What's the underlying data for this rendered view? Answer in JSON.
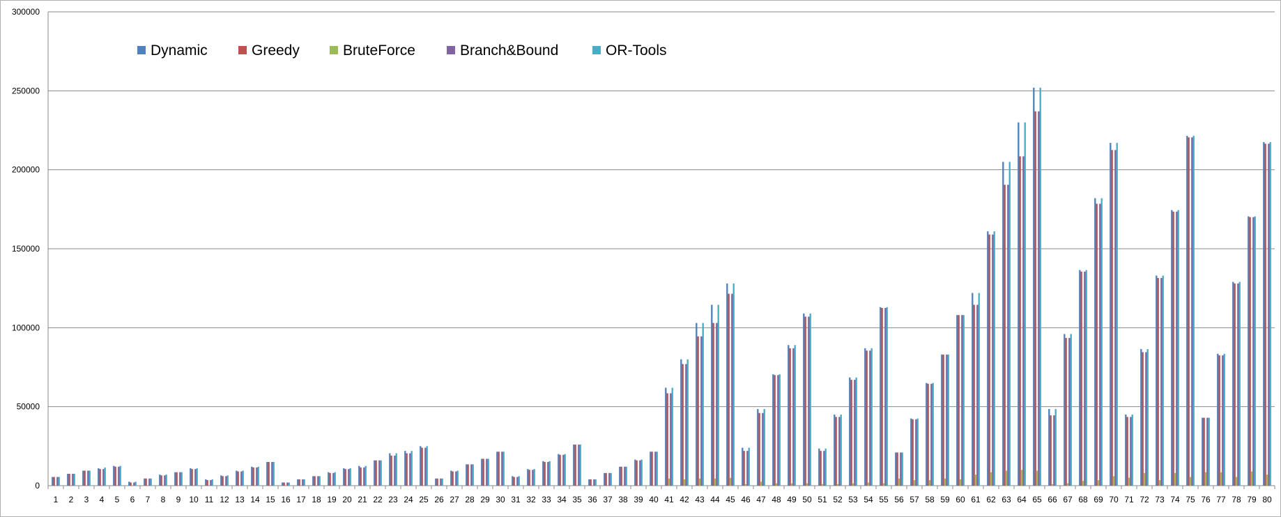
{
  "chart_data": {
    "type": "bar",
    "title": "",
    "xlabel": "",
    "ylabel": "",
    "ylim": [
      0,
      300000
    ],
    "y_ticks": [
      0,
      50000,
      100000,
      150000,
      200000,
      250000,
      300000
    ],
    "y_tick_labels": [
      "0",
      "50000",
      "100000",
      "150000",
      "200000",
      "250000",
      "300000"
    ],
    "grid": true,
    "legend_position": "top-left",
    "categories": [
      "1",
      "2",
      "3",
      "4",
      "5",
      "6",
      "7",
      "8",
      "9",
      "10",
      "11",
      "12",
      "13",
      "14",
      "15",
      "16",
      "17",
      "18",
      "19",
      "20",
      "21",
      "22",
      "23",
      "24",
      "25",
      "26",
      "27",
      "28",
      "29",
      "30",
      "31",
      "32",
      "33",
      "34",
      "35",
      "36",
      "37",
      "38",
      "39",
      "40",
      "41",
      "42",
      "43",
      "44",
      "45",
      "46",
      "47",
      "48",
      "49",
      "50",
      "51",
      "52",
      "53",
      "54",
      "55",
      "56",
      "57",
      "58",
      "59",
      "60",
      "61",
      "62",
      "63",
      "64",
      "65",
      "66",
      "67",
      "68",
      "69",
      "70",
      "71",
      "72",
      "73",
      "74",
      "75",
      "76",
      "77",
      "78",
      "79",
      "80"
    ],
    "series": [
      {
        "name": "Dynamic",
        "color": "#4F81BD",
        "values": [
          5500,
          7500,
          9500,
          11000,
          12500,
          2500,
          4500,
          7000,
          8500,
          11000,
          4000,
          6500,
          9500,
          12000,
          15000,
          2000,
          4000,
          6000,
          8500,
          11000,
          12500,
          16000,
          20500,
          22000,
          25000,
          4500,
          9500,
          13500,
          17000,
          21500,
          6000,
          10500,
          15500,
          20000,
          26000,
          4000,
          8000,
          12000,
          16500,
          21500,
          62000,
          80000,
          103000,
          114500,
          128000,
          24000,
          48500,
          70500,
          89000,
          109000,
          23500,
          45000,
          68500,
          87000,
          113000,
          21000,
          42500,
          65000,
          83000,
          108000,
          122000,
          161000,
          205000,
          230000,
          252000,
          48500,
          96000,
          136500,
          182000,
          217000,
          45000,
          86500,
          133000,
          174500,
          221500,
          43000,
          83500,
          129000,
          170500,
          217500
        ]
      },
      {
        "name": "Greedy",
        "color": "#C0504D",
        "values": [
          5500,
          7500,
          9500,
          10500,
          12000,
          2000,
          4500,
          6500,
          8500,
          10500,
          3500,
          6000,
          9000,
          11500,
          15000,
          2000,
          4000,
          6000,
          8000,
          10500,
          11500,
          16000,
          19000,
          20500,
          24000,
          4500,
          9000,
          13500,
          17000,
          21500,
          5500,
          10000,
          15000,
          19500,
          26000,
          4000,
          8000,
          12000,
          16000,
          21500,
          58500,
          77000,
          94500,
          103000,
          121500,
          22000,
          46000,
          70000,
          87000,
          107000,
          22000,
          43500,
          67000,
          85500,
          112500,
          21000,
          42000,
          64500,
          83000,
          108000,
          114500,
          159000,
          190500,
          208500,
          237000,
          44500,
          93500,
          135500,
          178500,
          212500,
          43500,
          84500,
          131500,
          173500,
          220500,
          43000,
          82500,
          128000,
          170000,
          216500
        ]
      },
      {
        "name": "BruteForce",
        "color": "#9BBB59",
        "values": [
          0,
          0,
          0,
          0,
          0,
          0,
          0,
          0,
          0,
          0,
          0,
          0,
          0,
          0,
          0,
          0,
          0,
          0,
          0,
          0,
          0,
          0,
          0,
          0,
          0,
          0,
          0,
          0,
          0,
          0,
          0,
          0,
          0,
          0,
          0,
          0,
          0,
          0,
          0,
          0,
          4500,
          4000,
          4500,
          4500,
          5000,
          1000,
          2500,
          1500,
          1500,
          1500,
          1000,
          1000,
          1500,
          2000,
          1500,
          4500,
          3500,
          3500,
          4500,
          4000,
          7000,
          8500,
          9500,
          10000,
          9500,
          1000,
          1500,
          3000,
          3500,
          6000,
          5000,
          8000,
          3500,
          8000,
          5500,
          8500,
          8500,
          5500,
          9000,
          7000
        ]
      },
      {
        "name": "Branch&Bound",
        "color": "#8064A2",
        "values": [
          5500,
          7500,
          9500,
          10500,
          12000,
          2000,
          4500,
          6500,
          8500,
          10500,
          3500,
          6000,
          9000,
          11500,
          15000,
          2000,
          4000,
          6000,
          8000,
          10500,
          11500,
          16000,
          19000,
          20500,
          24000,
          4500,
          9000,
          13500,
          17000,
          21500,
          5500,
          10000,
          15000,
          19500,
          26000,
          4000,
          8000,
          12000,
          16000,
          21500,
          58500,
          77000,
          94500,
          103000,
          121500,
          22000,
          46000,
          70000,
          87000,
          107000,
          22000,
          43500,
          67000,
          85500,
          112500,
          21000,
          42000,
          64500,
          83000,
          108000,
          114500,
          159000,
          190500,
          208500,
          237000,
          44500,
          93500,
          135500,
          178500,
          212500,
          43500,
          84500,
          131500,
          173500,
          220500,
          43000,
          82500,
          128000,
          170000,
          216500
        ]
      },
      {
        "name": "OR-Tools",
        "color": "#4BACC6",
        "values": [
          5500,
          7500,
          9500,
          11500,
          12500,
          2500,
          4500,
          7000,
          8500,
          11000,
          4000,
          6500,
          9500,
          12000,
          15000,
          2000,
          4000,
          6000,
          8500,
          11000,
          12500,
          16000,
          20500,
          22000,
          25000,
          4500,
          9500,
          13500,
          17000,
          21500,
          6000,
          10500,
          15500,
          20000,
          26000,
          4000,
          8000,
          12000,
          16500,
          21500,
          62000,
          80000,
          103000,
          114500,
          128000,
          24000,
          48500,
          70500,
          89000,
          109000,
          23500,
          45000,
          68500,
          87000,
          113000,
          21000,
          42500,
          65000,
          83000,
          108000,
          122000,
          161000,
          205000,
          230000,
          252000,
          48500,
          96000,
          136500,
          182000,
          217000,
          45000,
          86500,
          133000,
          174500,
          221500,
          43000,
          83500,
          129000,
          170500,
          217500
        ]
      }
    ]
  }
}
